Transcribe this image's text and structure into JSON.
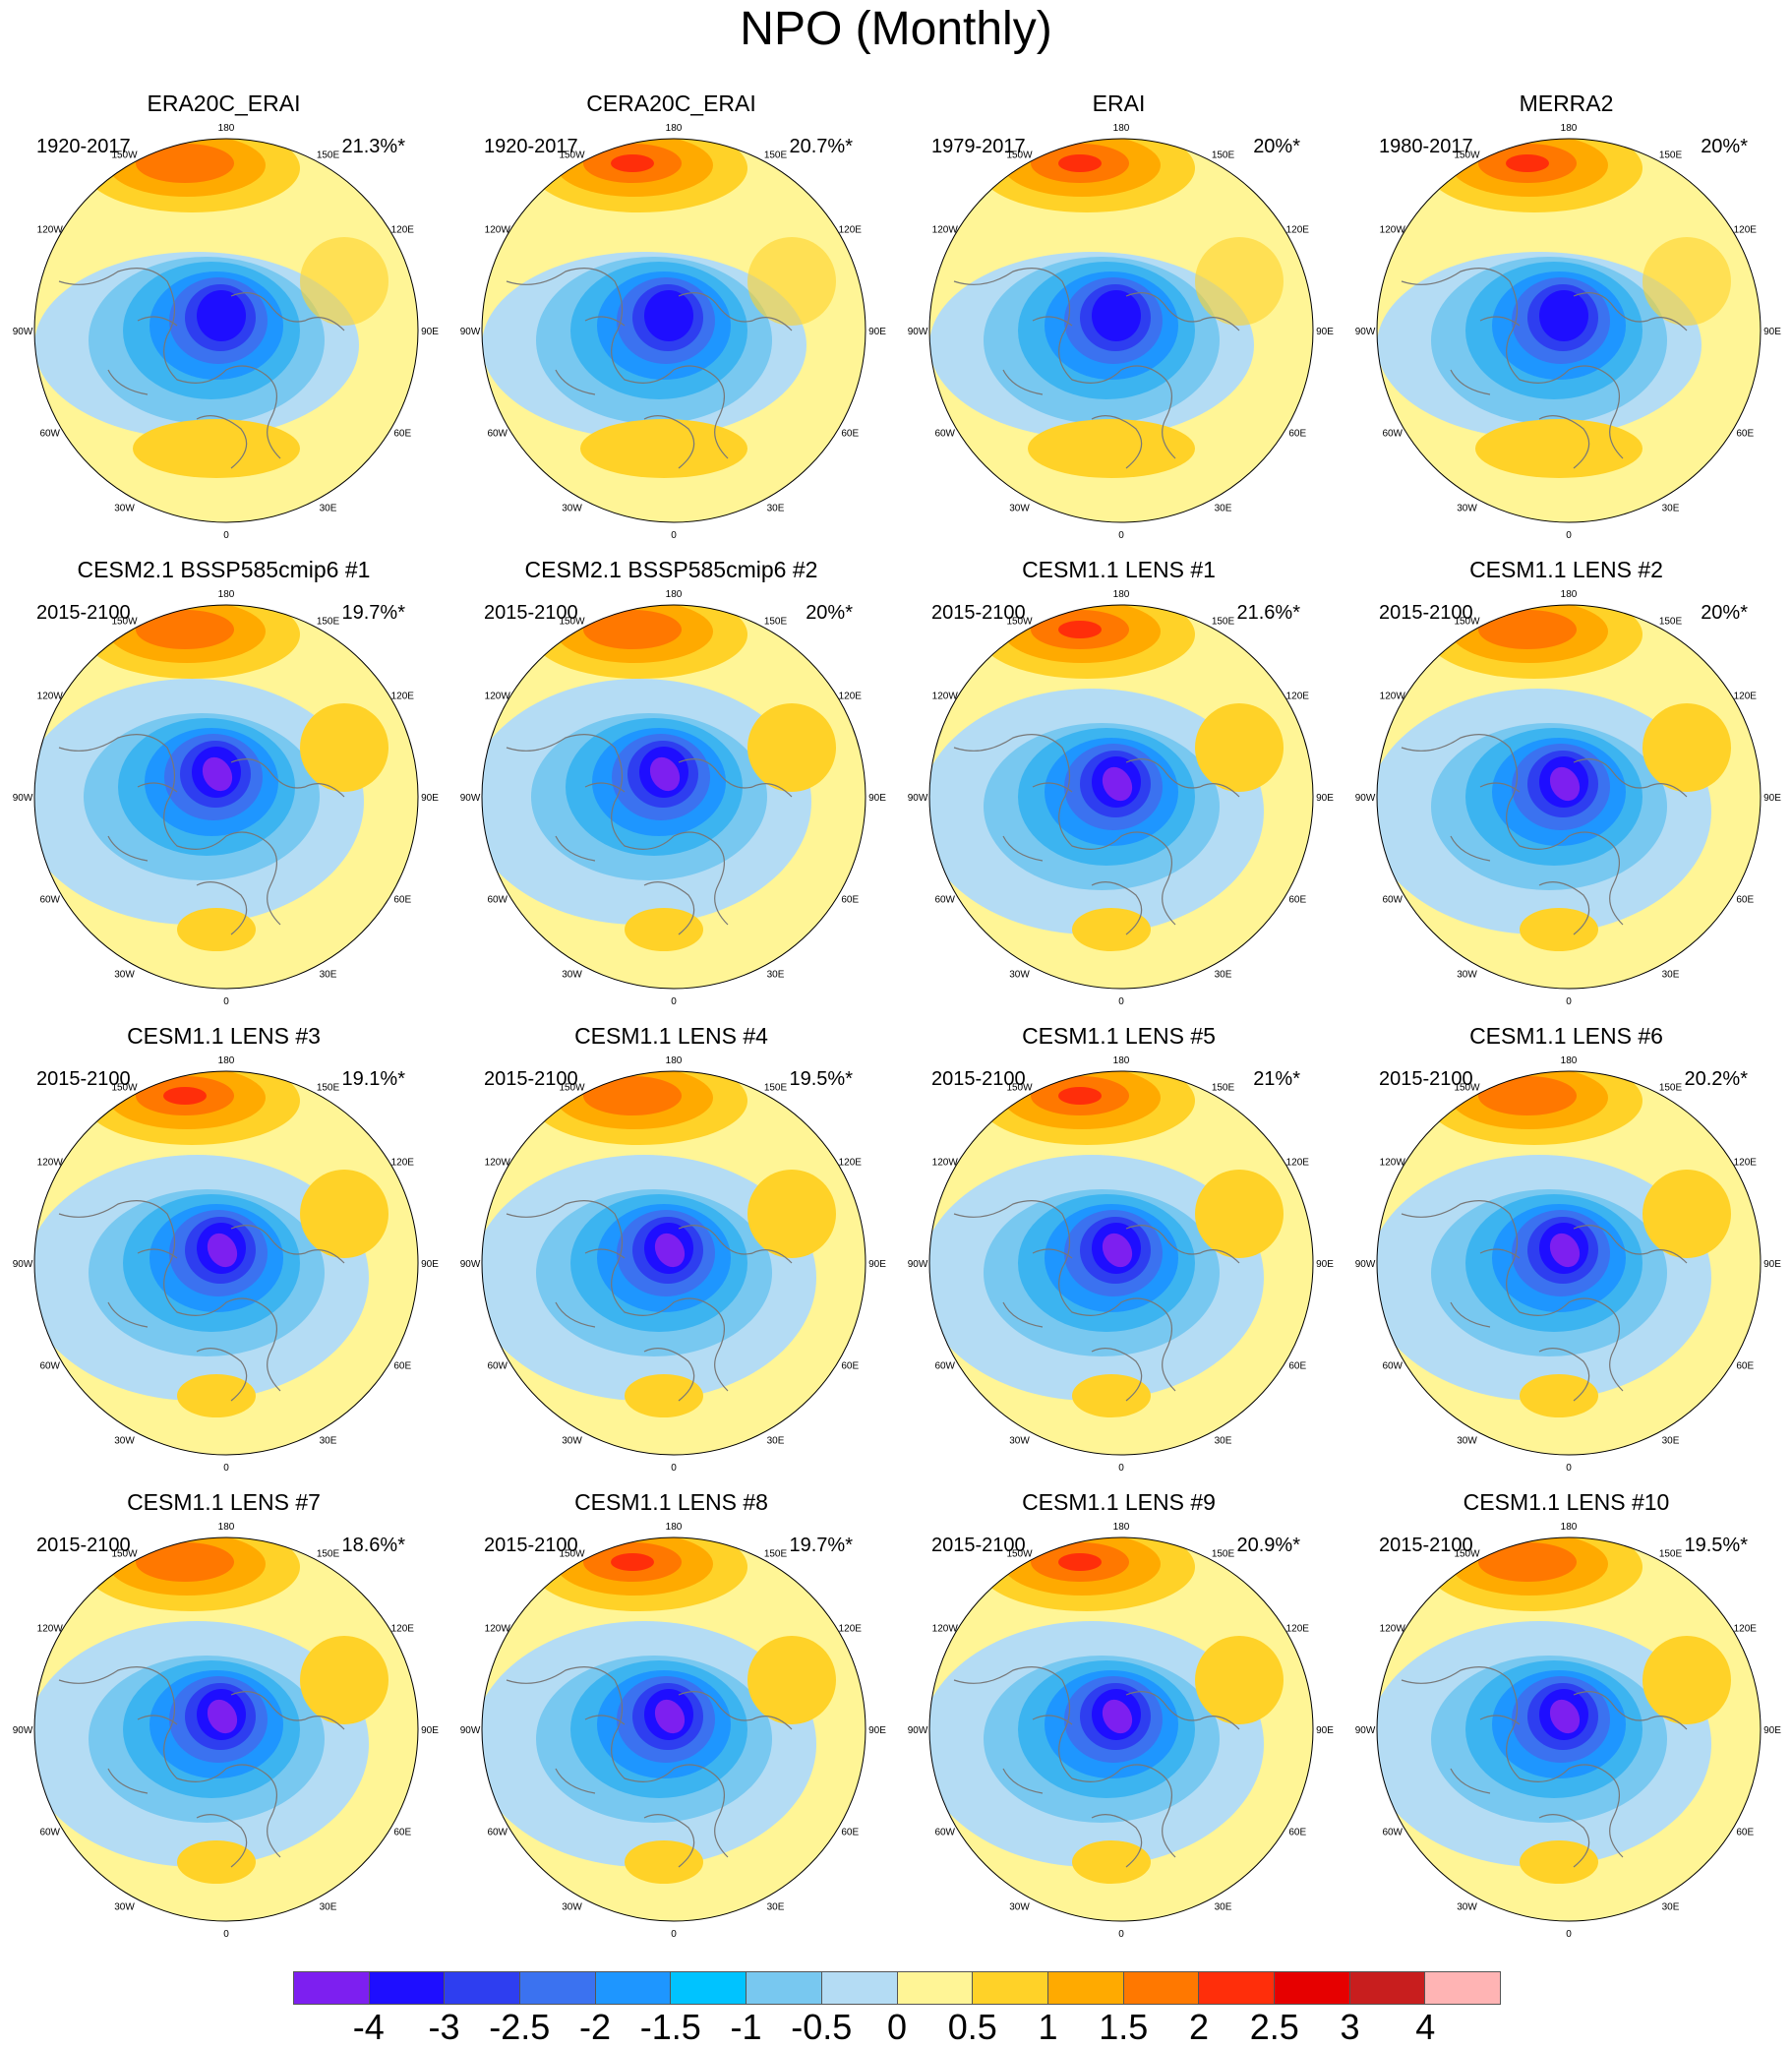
{
  "title": "NPO (Monthly)",
  "panels": [
    {
      "title": "ERA20C_ERAI",
      "years": "1920-2017",
      "pct": "21.3%*"
    },
    {
      "title": "CERA20C_ERAI",
      "years": "1920-2017",
      "pct": "20.7%*"
    },
    {
      "title": "ERAI",
      "years": "1979-2017",
      "pct": "20%*"
    },
    {
      "title": "MERRA2",
      "years": "1980-2017",
      "pct": "20%*"
    },
    {
      "title": "CESM2.1 BSSP585cmip6 #1",
      "years": "2015-2100",
      "pct": "19.7%*"
    },
    {
      "title": "CESM2.1 BSSP585cmip6 #2",
      "years": "2015-2100",
      "pct": "20%*"
    },
    {
      "title": "CESM1.1 LENS #1",
      "years": "2015-2100",
      "pct": "21.6%*"
    },
    {
      "title": "CESM1.1 LENS #2",
      "years": "2015-2100",
      "pct": "20%*"
    },
    {
      "title": "CESM1.1 LENS #3",
      "years": "2015-2100",
      "pct": "19.1%*"
    },
    {
      "title": "CESM1.1 LENS #4",
      "years": "2015-2100",
      "pct": "19.5%*"
    },
    {
      "title": "CESM1.1 LENS #5",
      "years": "2015-2100",
      "pct": "21%*"
    },
    {
      "title": "CESM1.1 LENS #6",
      "years": "2015-2100",
      "pct": "20.2%*"
    },
    {
      "title": "CESM1.1 LENS #7",
      "years": "2015-2100",
      "pct": "18.6%*"
    },
    {
      "title": "CESM1.1 LENS #8",
      "years": "2015-2100",
      "pct": "19.7%*"
    },
    {
      "title": "CESM1.1 LENS #9",
      "years": "2015-2100",
      "pct": "20.9%*"
    },
    {
      "title": "CESM1.1 LENS #10",
      "years": "2015-2100",
      "pct": "19.5%*"
    }
  ],
  "longitude_labels": [
    "180",
    "150E",
    "120E",
    "90E",
    "60E",
    "30E",
    "0",
    "30W",
    "60W",
    "90W",
    "120W",
    "150W"
  ],
  "colorbar": {
    "labels": [
      "-4",
      "-3",
      "-2.5",
      "-2",
      "-1.5",
      "-1",
      "-0.5",
      "0",
      "0.5",
      "1",
      "1.5",
      "2",
      "2.5",
      "3",
      "4"
    ],
    "colors": [
      "#7d1ff0",
      "#1e0eff",
      "#2e3ef0",
      "#3b72f0",
      "#1e96ff",
      "#00c3ff",
      "#78c8f0",
      "#b4dcf4",
      "#fff596",
      "#ffd228",
      "#ffaa00",
      "#ff7800",
      "#ff2e0a",
      "#e60000",
      "#c81e1e",
      "#ffb4b4"
    ]
  },
  "palette": {
    "neg_outer": "#b4dcf4",
    "neg2": "#78c8f0",
    "neg3": "#3cb4f0",
    "neg4": "#1e96ff",
    "neg5": "#3b72f0",
    "neg6": "#2e3ef0",
    "neg7": "#1e0eff",
    "neg8": "#7d1ff0",
    "pos1": "#ffd228",
    "pos2": "#ffaa00",
    "pos3": "#ff7800",
    "pos4": "#ff2e0a",
    "background": "#fff596",
    "land": "#777777"
  }
}
